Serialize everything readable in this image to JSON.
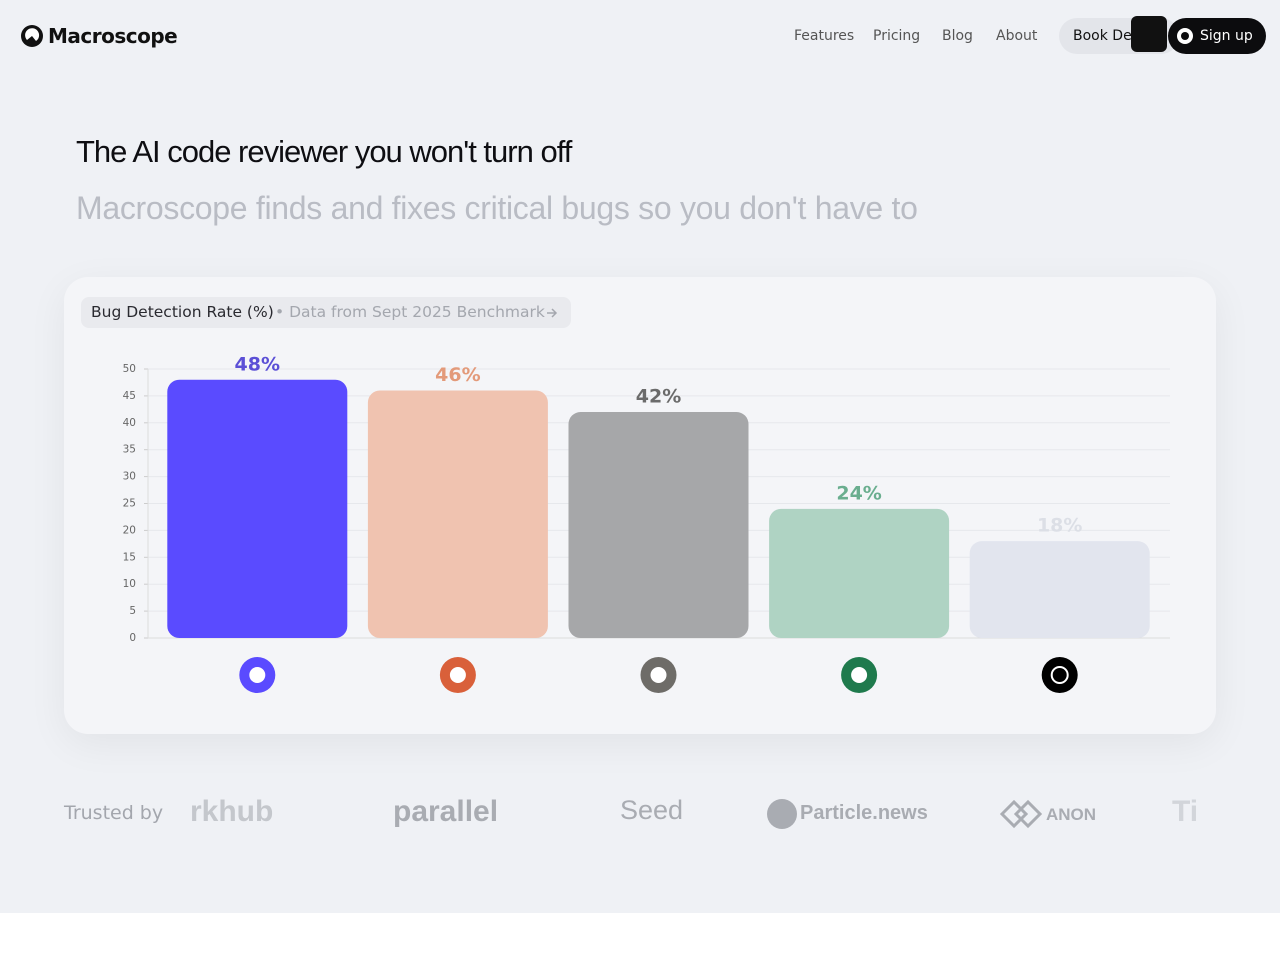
{
  "header": {
    "brand": "Macroscope",
    "nav": [
      "Features",
      "Pricing",
      "Blog",
      "About"
    ],
    "book_demo": "Book Demo",
    "sign_up": "Sign up"
  },
  "hero": {
    "title": "The AI code reviewer you won't turn off",
    "subtitle": "Macroscope finds and fixes critical bugs so you don't have to"
  },
  "chart_data": {
    "type": "bar",
    "title": "Bug Detection Rate (%)",
    "subtitle": "• Data from Sept 2025 Benchmark",
    "categories": [
      null,
      null,
      null,
      null,
      null
    ],
    "values": [
      48,
      46,
      42,
      24,
      18
    ],
    "value_labels": [
      "48%",
      "46%",
      "42%",
      "24%",
      "18%"
    ],
    "colors": [
      "#5a4bff",
      "#f0c3b0",
      "#a6a7a9",
      "#afd3c3",
      "#e2e5ee"
    ],
    "label_colors": [
      "#5b4fd6",
      "#e39a7a",
      "#6b6b6b",
      "#6aae8f",
      "#dcdfe6"
    ],
    "ylim": [
      0,
      50
    ],
    "yticks": [
      0,
      5,
      10,
      15,
      20,
      25,
      30,
      35,
      40,
      45,
      50
    ],
    "grid": true
  },
  "trusted": {
    "label": "Trusted by",
    "logos": [
      "rkhub",
      "parallel",
      "Seed",
      "Particle.news",
      "ANON",
      "Ti"
    ]
  }
}
